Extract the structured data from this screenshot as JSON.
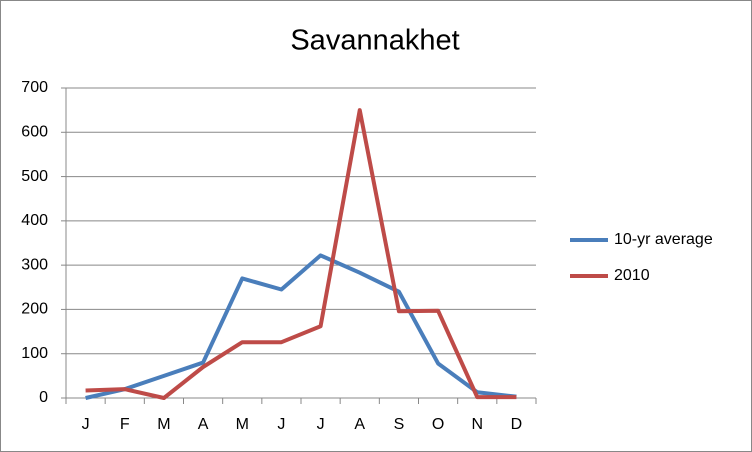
{
  "chart_data": {
    "type": "line",
    "title": "Savannakhet",
    "categories": [
      "J",
      "F",
      "M",
      "A",
      "M",
      "J",
      "J",
      "A",
      "S",
      "O",
      "N",
      "D"
    ],
    "series": [
      {
        "name": "10-yr average",
        "color": "#4a7ebb",
        "values": [
          0,
          20,
          50,
          80,
          270,
          245,
          322,
          283,
          240,
          78,
          13,
          3
        ]
      },
      {
        "name": "2010",
        "color": "#be4b48",
        "values": [
          17,
          20,
          0,
          70,
          126,
          126,
          162,
          650,
          196,
          197,
          2,
          2
        ]
      }
    ],
    "ylim": [
      0,
      700
    ],
    "yticks": [
      0,
      100,
      200,
      300,
      400,
      500,
      600,
      700
    ],
    "grid": true,
    "legend": "right"
  }
}
